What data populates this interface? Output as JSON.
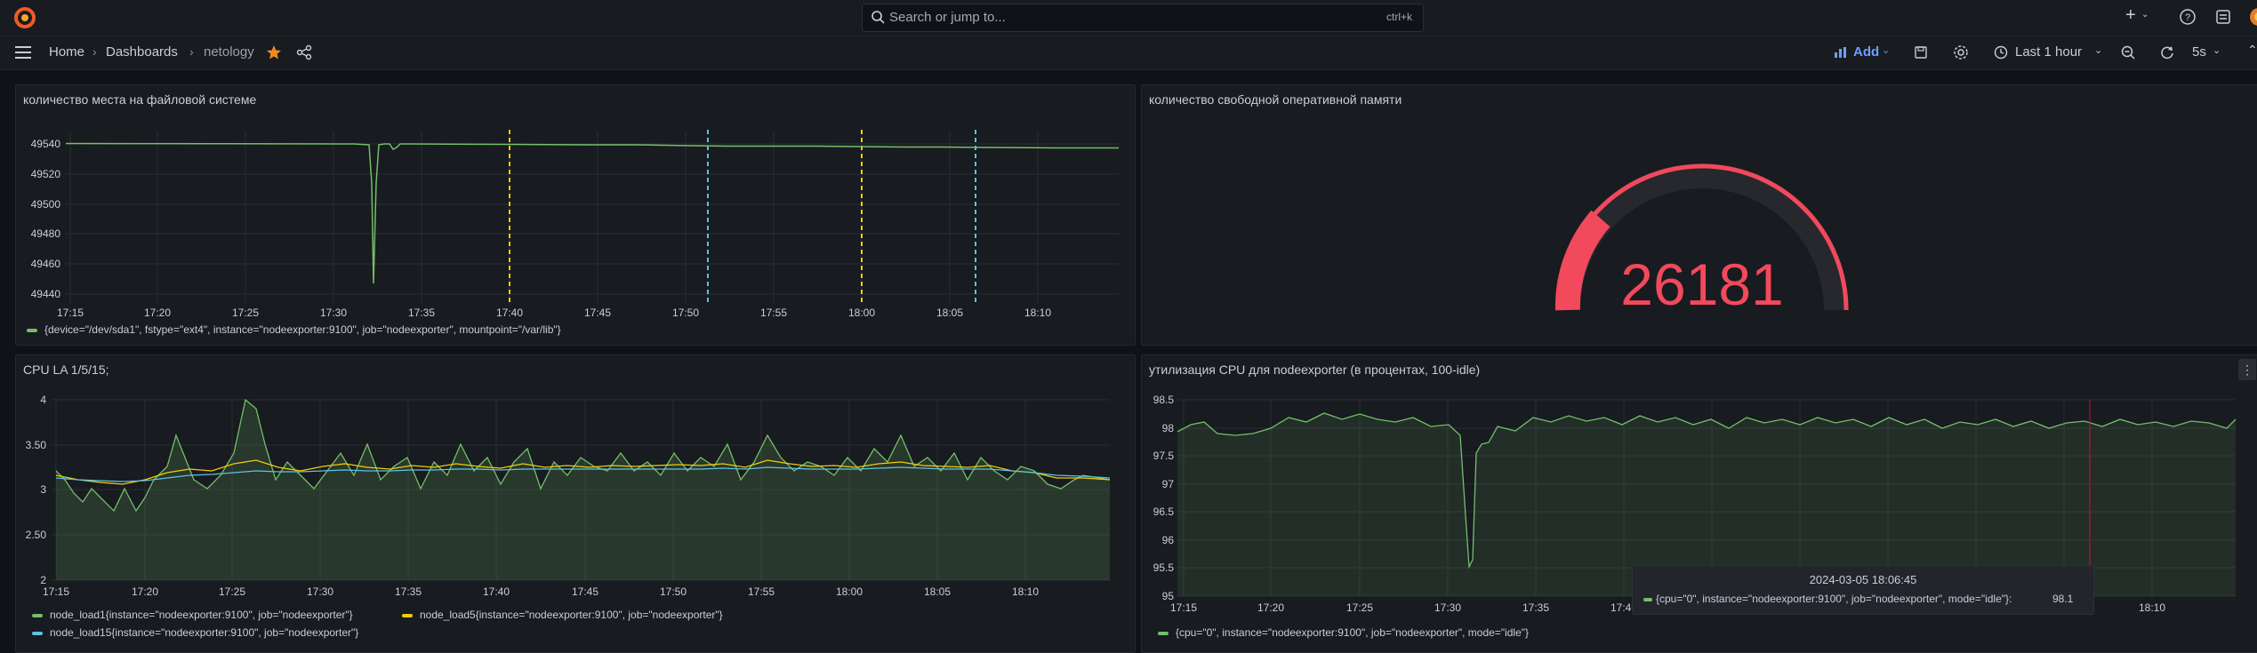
{
  "topbar": {
    "search_placeholder": "Search or jump to...",
    "search_shortcut": "ctrl+k"
  },
  "breadcrumb": {
    "home": "Home",
    "dashboards": "Dashboards",
    "current": "netology"
  },
  "toolbar": {
    "add_label": "Add",
    "time_range": "Last 1 hour",
    "refresh_interval": "5s"
  },
  "colors": {
    "green": "#73bf69",
    "yellow": "#f2cc0c",
    "blue": "#5ec1e6",
    "red": "#f2495c"
  },
  "panels": {
    "fs": {
      "title": "количество места на файловой системе",
      "legend": "{device=\"/dev/sda1\", fstype=\"ext4\", instance=\"nodeexporter:9100\", job=\"nodeexporter\", mountpoint=\"/var/lib\"}"
    },
    "mem": {
      "title": "количество свободной оперативной памяти",
      "value": "26181"
    },
    "la": {
      "title": "CPU LA 1/5/15;",
      "legend1": "node_load1{instance=\"nodeexporter:9100\", job=\"nodeexporter\"}",
      "legend5": "node_load5{instance=\"nodeexporter:9100\", job=\"nodeexporter\"}",
      "legend15": "node_load15{instance=\"nodeexporter:9100\", job=\"nodeexporter\"}"
    },
    "cpu": {
      "title": "утилизация CPU для nodeexporter (в процентах, 100-idle)",
      "legend": "{cpu=\"0\", instance=\"nodeexporter:9100\", job=\"nodeexporter\", mode=\"idle\"}"
    }
  },
  "tooltip": {
    "time": "2024-03-05 18:06:45",
    "series": "{cpu=\"0\", instance=\"nodeexporter:9100\", job=\"nodeexporter\", mode=\"idle\"}:",
    "value": "98.1"
  },
  "chart_data": [
    {
      "type": "line",
      "x_ticks": [
        "17:15",
        "17:20",
        "17:25",
        "17:30",
        "17:35",
        "17:40",
        "17:45",
        "17:50",
        "17:55",
        "18:00",
        "18:05",
        "18:10"
      ],
      "y_ticks": [
        "49440",
        "49460",
        "49480",
        "49500",
        "49520",
        "49540"
      ],
      "ylim": [
        49436,
        49552
      ],
      "series": [
        {
          "name": "{device=\"/dev/sda1\", fstype=\"ext4\", instance=\"nodeexporter:9100\", job=\"nodeexporter\", mountpoint=\"/var/lib\"}"
        }
      ]
    },
    {
      "type": "line",
      "x_ticks": [
        "17:15",
        "17:20",
        "17:25",
        "17:30",
        "17:35",
        "17:40",
        "17:45",
        "17:50",
        "17:55",
        "18:00",
        "18:05",
        "18:10"
      ],
      "y_ticks": [
        "2",
        "2.50",
        "3",
        "3.50",
        "4"
      ],
      "ylim": [
        2,
        4
      ],
      "series": [
        {
          "name": "node_load1{instance=\"nodeexporter:9100\", job=\"nodeexporter\"}"
        },
        {
          "name": "node_load5{instance=\"nodeexporter:9100\", job=\"nodeexporter\"}"
        },
        {
          "name": "node_load15{instance=\"nodeexporter:9100\", job=\"nodeexporter\"}"
        }
      ]
    },
    {
      "type": "area",
      "x_ticks": [
        "17:15",
        "17:20",
        "17:25",
        "17:30",
        "17:35",
        "17:40",
        "18:10"
      ],
      "y_ticks": [
        "95",
        "95.5",
        "96",
        "96.5",
        "97",
        "97.5",
        "98",
        "98.5"
      ],
      "ylim": [
        95,
        98.5
      ],
      "series": [
        {
          "name": "{cpu=\"0\", instance=\"nodeexporter:9100\", job=\"nodeexporter\", mode=\"idle\"}"
        }
      ]
    }
  ]
}
